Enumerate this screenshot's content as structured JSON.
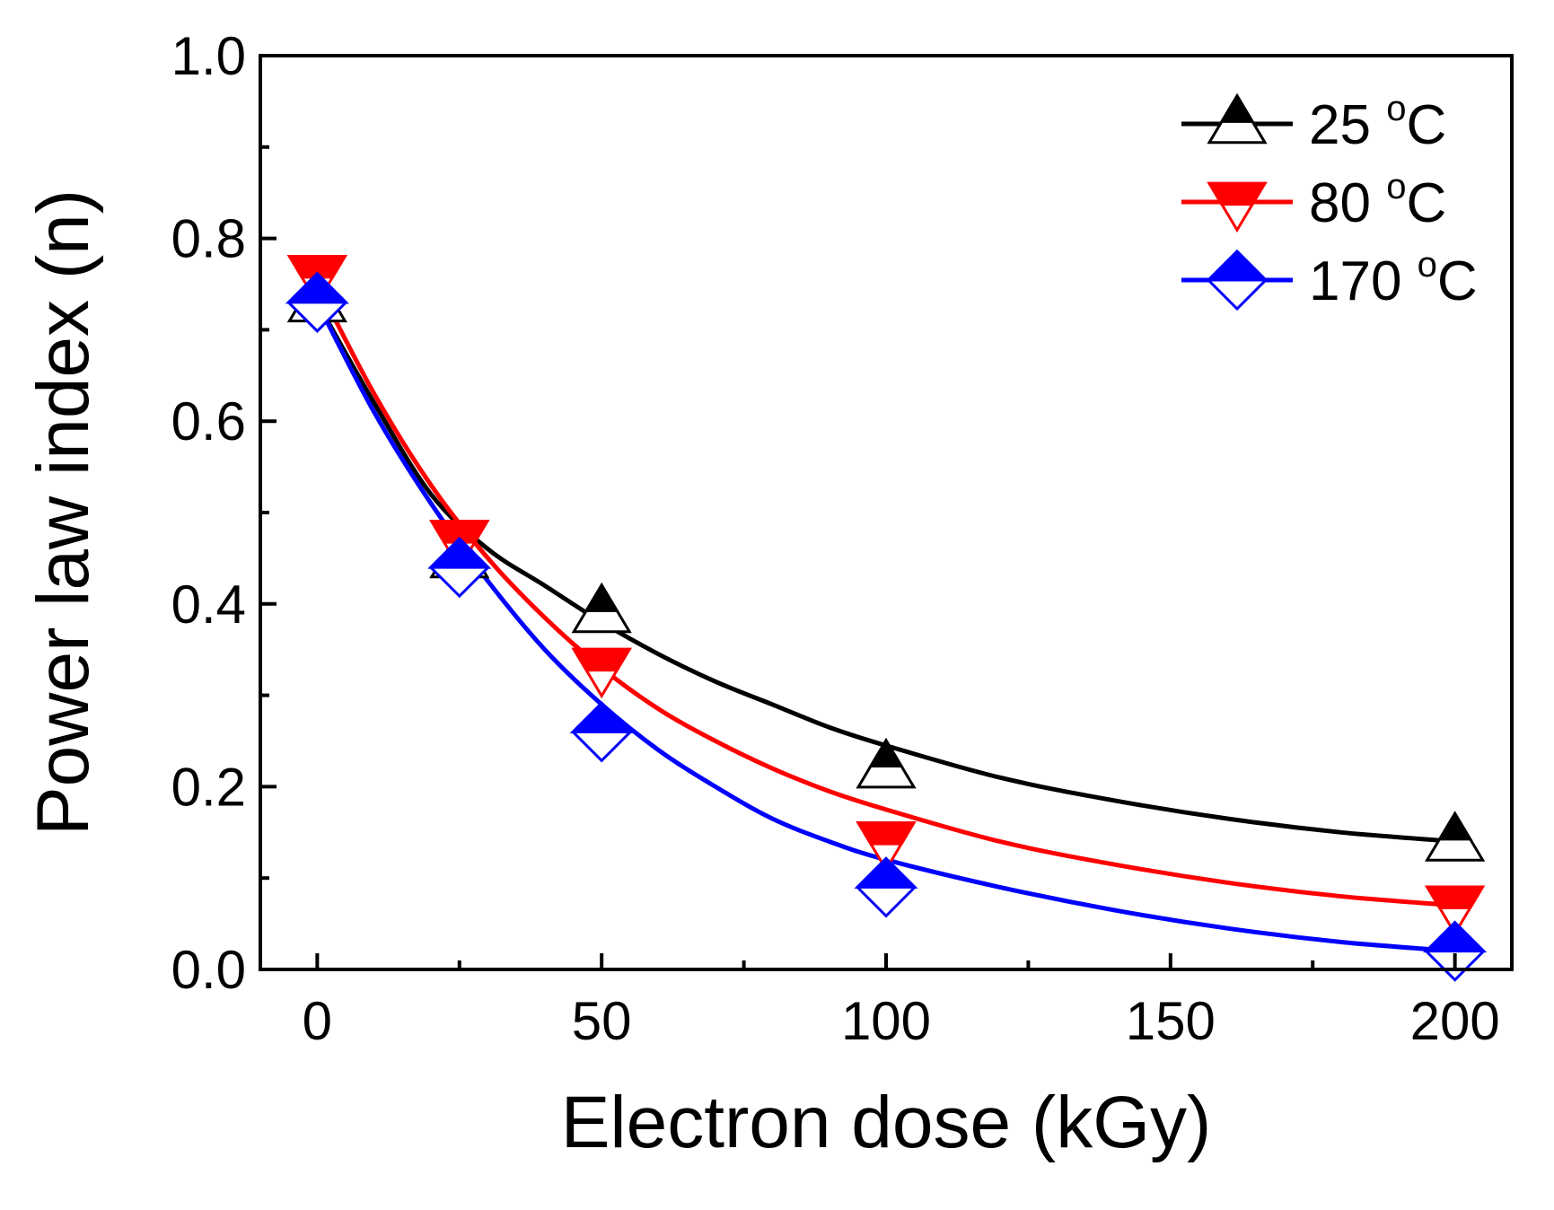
{
  "chart_data": {
    "type": "line",
    "title": "",
    "xlabel": "Electron dose (kGy)",
    "ylabel": "Power law index (n)",
    "xlim": [
      -10,
      210
    ],
    "ylim": [
      0.0,
      1.0
    ],
    "x_ticks": [
      0,
      50,
      100,
      150,
      200
    ],
    "x_tick_labels": [
      "0",
      "50",
      "100",
      "150",
      "200"
    ],
    "y_ticks": [
      0.0,
      0.2,
      0.4,
      0.6,
      0.8,
      1.0
    ],
    "y_tick_labels": [
      "0.0",
      "0.2",
      "0.4",
      "0.6",
      "0.8",
      "1.0"
    ],
    "grid": false,
    "legend_position": "top-right",
    "x": [
      0,
      25,
      50,
      100,
      200
    ],
    "series": [
      {
        "name": "25",
        "unit_sup": "o",
        "unit": "C",
        "marker": "triangle-up",
        "color": "#000000",
        "values": [
          0.73,
          0.45,
          0.39,
          0.22,
          0.14
        ],
        "fit": [
          [
            0,
            0.73
          ],
          [
            10,
            0.62
          ],
          [
            20,
            0.52
          ],
          [
            30,
            0.46
          ],
          [
            40,
            0.42
          ],
          [
            50,
            0.38
          ],
          [
            60,
            0.345
          ],
          [
            70,
            0.315
          ],
          [
            80,
            0.29
          ],
          [
            90,
            0.265
          ],
          [
            100,
            0.245
          ],
          [
            120,
            0.21
          ],
          [
            140,
            0.185
          ],
          [
            160,
            0.165
          ],
          [
            180,
            0.15
          ],
          [
            200,
            0.14
          ]
        ]
      },
      {
        "name": "80",
        "unit_sup": "o",
        "unit": "C",
        "marker": "triangle-down",
        "color": "#ff0000",
        "values": [
          0.76,
          0.47,
          0.33,
          0.14,
          0.07
        ],
        "fit": [
          [
            0,
            0.75
          ],
          [
            10,
            0.63
          ],
          [
            20,
            0.53
          ],
          [
            30,
            0.45
          ],
          [
            40,
            0.385
          ],
          [
            50,
            0.33
          ],
          [
            60,
            0.285
          ],
          [
            70,
            0.25
          ],
          [
            80,
            0.22
          ],
          [
            90,
            0.195
          ],
          [
            100,
            0.175
          ],
          [
            120,
            0.14
          ],
          [
            140,
            0.115
          ],
          [
            160,
            0.095
          ],
          [
            180,
            0.08
          ],
          [
            200,
            0.07
          ]
        ]
      },
      {
        "name": "170",
        "unit_sup": "o",
        "unit": "C",
        "marker": "diamond",
        "color": "#0000ff",
        "values": [
          0.73,
          0.44,
          0.26,
          0.09,
          0.02
        ],
        "fit": [
          [
            0,
            0.73
          ],
          [
            10,
            0.61
          ],
          [
            20,
            0.51
          ],
          [
            30,
            0.425
          ],
          [
            40,
            0.35
          ],
          [
            50,
            0.29
          ],
          [
            60,
            0.24
          ],
          [
            70,
            0.2
          ],
          [
            80,
            0.165
          ],
          [
            90,
            0.14
          ],
          [
            100,
            0.12
          ],
          [
            120,
            0.09
          ],
          [
            140,
            0.065
          ],
          [
            160,
            0.045
          ],
          [
            180,
            0.03
          ],
          [
            200,
            0.02
          ]
        ]
      }
    ]
  }
}
